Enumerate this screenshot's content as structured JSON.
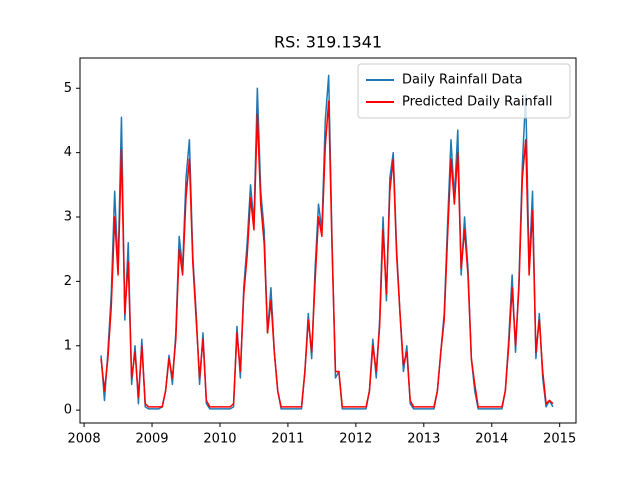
{
  "chart_data": {
    "type": "line",
    "title": "RS: 319.1341",
    "x": [
      2008.25,
      2008.3,
      2008.35,
      2008.4,
      2008.45,
      2008.5,
      2008.55,
      2008.6,
      2008.65,
      2008.7,
      2008.75,
      2008.8,
      2008.85,
      2008.9,
      2008.95,
      2009.0,
      2009.05,
      2009.1,
      2009.15,
      2009.2,
      2009.25,
      2009.3,
      2009.35,
      2009.4,
      2009.45,
      2009.5,
      2009.55,
      2009.6,
      2009.65,
      2009.7,
      2009.75,
      2009.8,
      2009.85,
      2009.9,
      2009.95,
      2010.0,
      2010.05,
      2010.1,
      2010.15,
      2010.2,
      2010.25,
      2010.3,
      2010.35,
      2010.4,
      2010.45,
      2010.5,
      2010.55,
      2010.6,
      2010.65,
      2010.7,
      2010.75,
      2010.8,
      2010.85,
      2010.9,
      2010.95,
      2011.0,
      2011.05,
      2011.1,
      2011.15,
      2011.2,
      2011.25,
      2011.3,
      2011.35,
      2011.4,
      2011.45,
      2011.5,
      2011.55,
      2011.6,
      2011.65,
      2011.7,
      2011.75,
      2011.8,
      2011.85,
      2011.9,
      2011.95,
      2012.0,
      2012.05,
      2012.1,
      2012.15,
      2012.2,
      2012.25,
      2012.3,
      2012.35,
      2012.4,
      2012.45,
      2012.5,
      2012.55,
      2012.6,
      2012.65,
      2012.7,
      2012.75,
      2012.8,
      2012.85,
      2012.9,
      2012.95,
      2013.0,
      2013.05,
      2013.1,
      2013.15,
      2013.2,
      2013.25,
      2013.3,
      2013.35,
      2013.4,
      2013.45,
      2013.5,
      2013.55,
      2013.6,
      2013.65,
      2013.7,
      2013.75,
      2013.8,
      2013.85,
      2013.9,
      2013.95,
      2014.0,
      2014.05,
      2014.1,
      2014.15,
      2014.2,
      2014.25,
      2014.3,
      2014.35,
      2014.4,
      2014.45,
      2014.5,
      2014.55,
      2014.6,
      2014.65,
      2014.7,
      2014.75,
      2014.8,
      2014.85,
      2014.9
    ],
    "series": [
      {
        "name": "Daily Rainfall Data",
        "color": "#1f77b4",
        "values": [
          0.85,
          0.15,
          0.9,
          1.8,
          3.4,
          2.2,
          4.55,
          1.4,
          2.6,
          0.4,
          1.0,
          0.1,
          1.1,
          0.05,
          0.02,
          0.02,
          0.02,
          0.02,
          0.05,
          0.3,
          0.85,
          0.4,
          1.2,
          2.7,
          2.2,
          3.6,
          4.2,
          2.4,
          1.5,
          0.4,
          1.2,
          0.1,
          0.02,
          0.02,
          0.02,
          0.02,
          0.02,
          0.02,
          0.02,
          0.05,
          1.3,
          0.5,
          1.9,
          2.6,
          3.5,
          2.9,
          5.0,
          3.4,
          2.8,
          1.2,
          1.9,
          0.9,
          0.3,
          0.02,
          0.02,
          0.02,
          0.02,
          0.02,
          0.02,
          0.02,
          0.6,
          1.5,
          0.8,
          2.2,
          3.2,
          2.8,
          4.5,
          5.2,
          2.6,
          0.5,
          0.6,
          0.02,
          0.02,
          0.02,
          0.02,
          0.02,
          0.02,
          0.02,
          0.02,
          0.3,
          1.1,
          0.5,
          1.4,
          3.0,
          1.7,
          3.6,
          4.0,
          2.5,
          1.5,
          0.6,
          1.0,
          0.1,
          0.02,
          0.02,
          0.02,
          0.02,
          0.02,
          0.02,
          0.02,
          0.3,
          0.9,
          1.5,
          2.9,
          4.2,
          3.3,
          4.35,
          2.1,
          3.0,
          2.2,
          0.8,
          0.3,
          0.02,
          0.02,
          0.02,
          0.02,
          0.02,
          0.02,
          0.02,
          0.02,
          0.3,
          1.1,
          2.1,
          0.9,
          2.0,
          3.8,
          4.9,
          2.2,
          3.4,
          0.8,
          1.5,
          0.5,
          0.05,
          0.15,
          0.05
        ]
      },
      {
        "name": "Predicted Daily Rainfall",
        "color": "#ff0000",
        "values": [
          0.8,
          0.3,
          0.8,
          1.6,
          3.0,
          2.1,
          4.05,
          1.5,
          2.3,
          0.5,
          0.9,
          0.2,
          1.0,
          0.1,
          0.05,
          0.05,
          0.05,
          0.05,
          0.05,
          0.3,
          0.8,
          0.5,
          1.1,
          2.5,
          2.1,
          3.3,
          3.9,
          2.3,
          1.4,
          0.5,
          1.1,
          0.15,
          0.05,
          0.05,
          0.05,
          0.05,
          0.05,
          0.05,
          0.05,
          0.1,
          1.2,
          0.6,
          1.8,
          2.4,
          3.3,
          2.8,
          4.6,
          3.2,
          2.6,
          1.2,
          1.7,
          0.9,
          0.3,
          0.05,
          0.05,
          0.05,
          0.05,
          0.05,
          0.05,
          0.05,
          0.6,
          1.4,
          0.9,
          2.0,
          3.0,
          2.7,
          4.1,
          4.8,
          2.5,
          0.6,
          0.6,
          0.05,
          0.05,
          0.05,
          0.05,
          0.05,
          0.05,
          0.05,
          0.05,
          0.3,
          1.0,
          0.6,
          1.3,
          2.8,
          1.8,
          3.4,
          3.9,
          2.4,
          1.5,
          0.7,
          0.9,
          0.15,
          0.05,
          0.05,
          0.05,
          0.05,
          0.05,
          0.05,
          0.05,
          0.3,
          0.9,
          1.4,
          2.7,
          3.9,
          3.2,
          4.0,
          2.2,
          2.8,
          2.1,
          0.8,
          0.4,
          0.05,
          0.05,
          0.05,
          0.05,
          0.05,
          0.05,
          0.05,
          0.05,
          0.3,
          1.0,
          1.9,
          1.0,
          1.9,
          3.6,
          4.2,
          2.1,
          3.1,
          0.9,
          1.4,
          0.6,
          0.1,
          0.15,
          0.1
        ]
      }
    ],
    "xlim": [
      2007.94,
      2015.24
    ],
    "xticks": [
      2008,
      2009,
      2010,
      2011,
      2012,
      2013,
      2014,
      2015
    ],
    "ylim": [
      -0.2,
      5.47
    ],
    "yticks": [
      0,
      1,
      2,
      3,
      4,
      5
    ],
    "legend": "upper right"
  }
}
